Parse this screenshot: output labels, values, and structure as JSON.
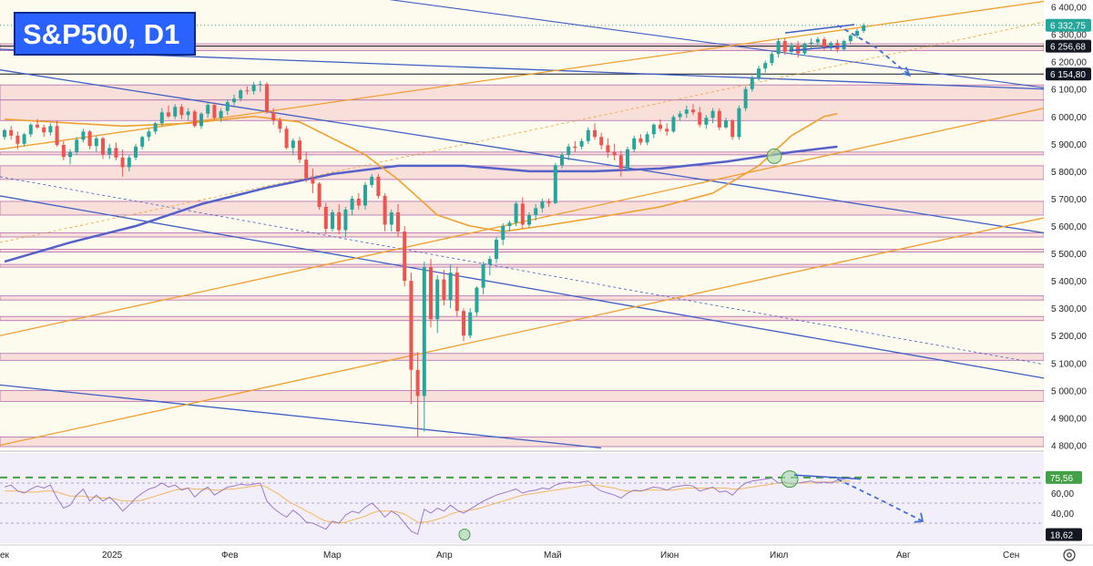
{
  "title": "S&P500, D1",
  "colors": {
    "up": "#26a69a",
    "down": "#ef5350",
    "title_bg": "#2962ff",
    "sma_short": "#f0a030",
    "sma_long": "#5561c9",
    "channel_blue": "#3f5fc4",
    "channel_orange": "#f0a030",
    "rsi_line": "#9c7ac8",
    "rsi_signal": "#f0b860",
    "rsi_level": "#43a047"
  },
  "price_axis": {
    "ticks": [
      "6 400,00",
      "6 300,00",
      "6 200,00",
      "6 100,00",
      "6 000,00",
      "5 900,00",
      "5 800,00",
      "5 700,00",
      "5 600,00",
      "5 500,00",
      "5 400,00",
      "5 300,00",
      "5 200,00",
      "5 100,00",
      "5 000,00",
      "4 900,00",
      "4 800,00"
    ],
    "ylim": [
      4785,
      6425
    ],
    "price_tags": [
      {
        "label": "6 332,75",
        "value": 6332.75,
        "color": "#26a69a"
      },
      {
        "label": "6 256,68",
        "value": 6256.68,
        "color": "#131722"
      },
      {
        "label": "6 154,80",
        "value": 6154.8,
        "color": "#131722"
      }
    ]
  },
  "rsi_axis": {
    "ticks": [
      "60,00",
      "40,00"
    ],
    "ylim": [
      10,
      100
    ],
    "tags": [
      {
        "label": "75,56",
        "value": 75.56,
        "color": "#43a047"
      },
      {
        "label": "18,62",
        "value": 18.62,
        "color": "#131722"
      }
    ]
  },
  "time_axis": [
    "ек",
    "2025",
    "Фев",
    "Мар",
    "Апр",
    "Май",
    "Июн",
    "Июл",
    "Авг",
    "Сен"
  ],
  "icons": {
    "settings": "gear-icon"
  },
  "chart_data": {
    "type": "candlestick",
    "title": "S&P500, D1",
    "xlabel": "",
    "ylabel": "",
    "ylim": [
      4785,
      6425
    ],
    "grid": false,
    "legend": "none",
    "series": [
      {
        "values": [
          [
            5925,
            5955,
            5915,
            5950
          ],
          [
            5950,
            5965,
            5915,
            5930
          ],
          [
            5930,
            5945,
            5880,
            5900
          ],
          [
            5900,
            5940,
            5890,
            5935
          ],
          [
            5935,
            5975,
            5925,
            5970
          ],
          [
            5970,
            5990,
            5955,
            5960
          ],
          [
            5960,
            5970,
            5925,
            5942
          ],
          [
            5942,
            5975,
            5930,
            5965
          ],
          [
            5965,
            5985,
            5890,
            5896
          ],
          [
            5896,
            5910,
            5840,
            5852
          ],
          [
            5852,
            5880,
            5825,
            5870
          ],
          [
            5870,
            5925,
            5860,
            5915
          ],
          [
            5915,
            5955,
            5905,
            5945
          ],
          [
            5945,
            5950,
            5880,
            5892
          ],
          [
            5892,
            5930,
            5870,
            5920
          ],
          [
            5920,
            5925,
            5845,
            5862
          ],
          [
            5862,
            5900,
            5845,
            5885
          ],
          [
            5885,
            5905,
            5840,
            5850
          ],
          [
            5850,
            5880,
            5780,
            5815
          ],
          [
            5815,
            5860,
            5800,
            5850
          ],
          [
            5850,
            5900,
            5840,
            5890
          ],
          [
            5890,
            5930,
            5880,
            5925
          ],
          [
            5925,
            5955,
            5910,
            5945
          ],
          [
            5945,
            5980,
            5935,
            5975
          ],
          [
            5975,
            6030,
            5965,
            6015
          ],
          [
            6015,
            6040,
            5995,
            6000
          ],
          [
            6000,
            6045,
            5990,
            6035
          ],
          [
            6035,
            6045,
            5990,
            6005
          ],
          [
            6005,
            6030,
            5985,
            6018
          ],
          [
            6018,
            6025,
            5960,
            5965
          ],
          [
            5965,
            6015,
            5955,
            6010
          ],
          [
            6010,
            6050,
            5995,
            6042
          ],
          [
            6042,
            6050,
            5985,
            5995
          ],
          [
            5995,
            6030,
            5980,
            6020
          ],
          [
            6020,
            6060,
            6005,
            6052
          ],
          [
            6052,
            6080,
            6040,
            6065
          ],
          [
            6065,
            6100,
            6055,
            6095
          ],
          [
            6095,
            6110,
            6080,
            6092
          ],
          [
            6092,
            6125,
            6080,
            6115
          ],
          [
            6115,
            6130,
            6090,
            6118
          ],
          [
            6118,
            6125,
            6010,
            6015
          ],
          [
            6015,
            6030,
            5970,
            5985
          ],
          [
            5985,
            5995,
            5940,
            5955
          ],
          [
            5955,
            5965,
            5880,
            5885
          ],
          [
            5885,
            5920,
            5860,
            5912
          ],
          [
            5912,
            5925,
            5830,
            5842
          ],
          [
            5842,
            5870,
            5760,
            5775
          ],
          [
            5775,
            5810,
            5720,
            5755
          ],
          [
            5755,
            5760,
            5660,
            5670
          ],
          [
            5670,
            5685,
            5570,
            5590
          ],
          [
            5590,
            5660,
            5580,
            5650
          ],
          [
            5650,
            5680,
            5570,
            5585
          ],
          [
            5585,
            5670,
            5560,
            5660
          ],
          [
            5660,
            5710,
            5640,
            5700
          ],
          [
            5700,
            5720,
            5660,
            5675
          ],
          [
            5675,
            5760,
            5660,
            5750
          ],
          [
            5750,
            5790,
            5740,
            5780
          ],
          [
            5780,
            5790,
            5700,
            5710
          ],
          [
            5710,
            5720,
            5580,
            5605
          ],
          [
            5605,
            5660,
            5580,
            5650
          ],
          [
            5650,
            5680,
            5560,
            5580
          ],
          [
            5580,
            5600,
            5380,
            5400
          ],
          [
            5400,
            5430,
            4950,
            5075
          ],
          [
            5075,
            5140,
            4830,
            4980
          ],
          [
            4980,
            5470,
            4850,
            5450
          ],
          [
            5450,
            5480,
            5230,
            5260
          ],
          [
            5260,
            5420,
            5210,
            5405
          ],
          [
            5405,
            5440,
            5310,
            5330
          ],
          [
            5330,
            5460,
            5300,
            5430
          ],
          [
            5430,
            5450,
            5270,
            5290
          ],
          [
            5290,
            5300,
            5180,
            5200
          ],
          [
            5200,
            5300,
            5190,
            5285
          ],
          [
            5285,
            5380,
            5270,
            5375
          ],
          [
            5375,
            5470,
            5350,
            5460
          ],
          [
            5460,
            5490,
            5420,
            5480
          ],
          [
            5480,
            5560,
            5465,
            5550
          ],
          [
            5550,
            5610,
            5530,
            5600
          ],
          [
            5600,
            5620,
            5580,
            5612
          ],
          [
            5612,
            5690,
            5600,
            5682
          ],
          [
            5682,
            5705,
            5590,
            5605
          ],
          [
            5605,
            5650,
            5595,
            5640
          ],
          [
            5640,
            5680,
            5620,
            5665
          ],
          [
            5665,
            5700,
            5650,
            5690
          ],
          [
            5690,
            5700,
            5670,
            5684
          ],
          [
            5684,
            5830,
            5680,
            5822
          ],
          [
            5822,
            5870,
            5810,
            5860
          ],
          [
            5860,
            5900,
            5840,
            5890
          ],
          [
            5890,
            5910,
            5870,
            5885
          ],
          [
            5890,
            5920,
            5880,
            5910
          ],
          [
            5910,
            5960,
            5900,
            5950
          ],
          [
            5950,
            5975,
            5915,
            5925
          ],
          [
            5925,
            5940,
            5880,
            5895
          ],
          [
            5895,
            5920,
            5850,
            5870
          ],
          [
            5870,
            5900,
            5840,
            5858
          ],
          [
            5858,
            5875,
            5780,
            5810
          ],
          [
            5810,
            5890,
            5800,
            5880
          ],
          [
            5880,
            5930,
            5870,
            5920
          ],
          [
            5920,
            5935,
            5895,
            5905
          ],
          [
            5905,
            5945,
            5895,
            5935
          ],
          [
            5935,
            5975,
            5920,
            5970
          ],
          [
            5970,
            5990,
            5945,
            5955
          ],
          [
            5955,
            5975,
            5930,
            5945
          ],
          [
            5945,
            6005,
            5940,
            5998
          ],
          [
            5998,
            6020,
            5985,
            6010
          ],
          [
            6010,
            6040,
            5995,
            6025
          ],
          [
            6025,
            6045,
            6005,
            6015
          ],
          [
            6015,
            6035,
            5960,
            5970
          ],
          [
            5970,
            6005,
            5955,
            5995
          ],
          [
            5995,
            6030,
            5975,
            6020
          ],
          [
            6020,
            6030,
            5950,
            5960
          ],
          [
            5960,
            5995,
            5955,
            5985
          ],
          [
            5985,
            5990,
            5915,
            5925
          ],
          [
            5925,
            6040,
            5915,
            6030
          ],
          [
            6030,
            6110,
            6020,
            6100
          ],
          [
            6100,
            6150,
            6090,
            6140
          ],
          [
            6140,
            6185,
            6130,
            6175
          ],
          [
            6175,
            6205,
            6160,
            6195
          ],
          [
            6195,
            6235,
            6185,
            6228
          ],
          [
            6228,
            6285,
            6215,
            6275
          ],
          [
            6275,
            6285,
            6225,
            6236
          ],
          [
            6236,
            6270,
            6225,
            6260
          ],
          [
            6260,
            6275,
            6215,
            6230
          ],
          [
            6230,
            6270,
            6225,
            6265
          ],
          [
            6265,
            6285,
            6245,
            6270
          ],
          [
            6270,
            6290,
            6255,
            6282
          ],
          [
            6282,
            6290,
            6240,
            6250
          ],
          [
            6250,
            6275,
            6240,
            6268
          ],
          [
            6268,
            6280,
            6235,
            6245
          ],
          [
            6245,
            6280,
            6240,
            6275
          ],
          [
            6275,
            6300,
            6265,
            6295
          ],
          [
            6295,
            6320,
            6285,
            6312
          ],
          [
            6312,
            6340,
            6305,
            6332.75
          ]
        ]
      }
    ],
    "sma_short": [
      [
        0,
        5990
      ],
      [
        18,
        5965
      ],
      [
        28,
        5975
      ],
      [
        38,
        6000
      ],
      [
        45,
        5980
      ],
      [
        50,
        5920
      ],
      [
        55,
        5860
      ],
      [
        60,
        5770
      ],
      [
        66,
        5640
      ],
      [
        71,
        5600
      ],
      [
        76,
        5580
      ],
      [
        82,
        5600
      ],
      [
        90,
        5630
      ],
      [
        100,
        5670
      ],
      [
        108,
        5720
      ],
      [
        115,
        5820
      ],
      [
        120,
        5930
      ],
      [
        125,
        6000
      ],
      [
        127,
        6010
      ]
    ],
    "sma_long": [
      [
        0,
        5470
      ],
      [
        10,
        5540
      ],
      [
        20,
        5600
      ],
      [
        30,
        5680
      ],
      [
        40,
        5740
      ],
      [
        50,
        5790
      ],
      [
        60,
        5820
      ],
      [
        70,
        5820
      ],
      [
        80,
        5800
      ],
      [
        90,
        5800
      ],
      [
        100,
        5810
      ],
      [
        110,
        5835
      ],
      [
        120,
        5870
      ],
      [
        127,
        5890
      ]
    ],
    "rsi": [
      66,
      68,
      62,
      60,
      64,
      67,
      65,
      68,
      55,
      45,
      48,
      58,
      64,
      52,
      58,
      52,
      56,
      50,
      42,
      48,
      55,
      60,
      64,
      66,
      70,
      66,
      68,
      63,
      65,
      56,
      62,
      66,
      58,
      62,
      66,
      67,
      69,
      68,
      69,
      70,
      52,
      45,
      40,
      36,
      43,
      38,
      31,
      30,
      27,
      24,
      32,
      30,
      38,
      42,
      40,
      46,
      50,
      44,
      36,
      42,
      38,
      30,
      22,
      19,
      44,
      40,
      45,
      42,
      48,
      43,
      40,
      44,
      48,
      52,
      55,
      58,
      60,
      62,
      64,
      60,
      62,
      63,
      65,
      64,
      68,
      70,
      71,
      70,
      71,
      72,
      66,
      62,
      60,
      58,
      55,
      60,
      63,
      62,
      64,
      66,
      65,
      63,
      66,
      67,
      68,
      67,
      62,
      64,
      66,
      61,
      62,
      58,
      65,
      70,
      72,
      73,
      74,
      75,
      70,
      71,
      69,
      70,
      71,
      72,
      70,
      71,
      70,
      73,
      74,
      76
    ],
    "rsi_signal_ma": [
      62,
      62,
      62,
      61,
      61,
      61,
      62,
      62,
      61,
      59,
      57,
      57,
      57,
      56,
      56,
      55,
      55,
      54,
      52,
      52,
      52,
      53,
      55,
      57,
      59,
      61,
      63,
      64,
      65,
      64,
      64,
      64,
      63,
      63,
      64,
      64,
      65,
      66,
      67,
      68,
      66,
      62,
      58,
      53,
      49,
      46,
      42,
      39,
      35,
      32,
      31,
      30,
      31,
      33,
      35,
      37,
      40,
      42,
      42,
      42,
      41,
      39,
      35,
      31,
      31,
      32,
      34,
      36,
      39,
      41,
      42,
      43,
      44,
      46,
      48,
      50,
      52,
      54,
      56,
      58,
      59,
      60,
      61,
      62,
      63,
      64,
      65,
      66,
      67,
      68,
      68,
      67,
      66,
      65,
      63,
      62,
      62,
      62,
      63,
      63,
      63,
      63,
      63,
      64,
      65,
      65,
      65,
      65,
      65,
      65,
      65,
      64,
      64,
      65,
      66,
      67,
      68,
      69,
      70,
      70,
      70,
      70,
      70,
      70,
      71,
      71,
      71,
      71,
      72,
      72
    ],
    "rsi_levels": [
      75.56,
      70,
      50,
      30,
      18.62
    ],
    "forecast": {
      "price_path": [
        [
          127,
          6332.75
        ],
        [
          133,
          6250
        ],
        [
          138,
          6150
        ]
      ],
      "rsi_path": [
        [
          127,
          74
        ],
        [
          133,
          55
        ],
        [
          140,
          32
        ]
      ]
    }
  }
}
